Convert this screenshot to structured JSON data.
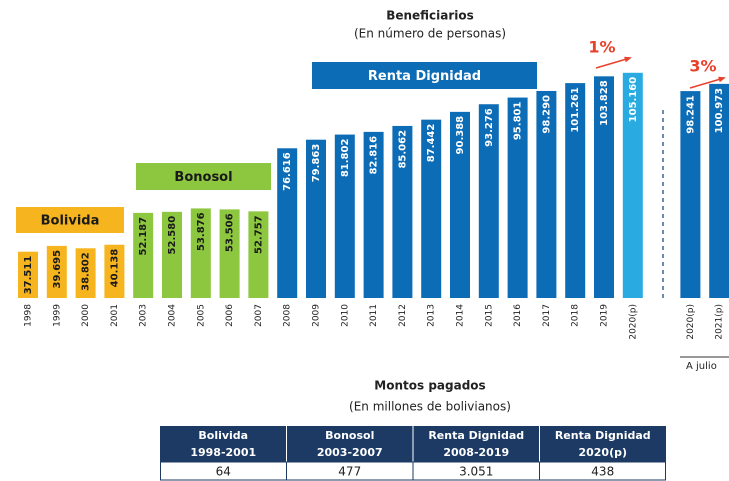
{
  "chart_data": {
    "type": "bar",
    "title": "Beneficiarios",
    "subtitle": "(En número de personas)",
    "categories": [
      "1998",
      "1999",
      "2000",
      "2001",
      "2003",
      "2004",
      "2005",
      "2006",
      "2007",
      "2008",
      "2009",
      "2010",
      "2011",
      "2012",
      "2013",
      "2014",
      "2015",
      "2016",
      "2017",
      "2018",
      "2019",
      "2020(p)",
      null,
      "2020(p)",
      "2021(p)"
    ],
    "values": [
      37511,
      39695,
      38802,
      40138,
      52187,
      52580,
      53876,
      53506,
      52757,
      76616,
      79863,
      81802,
      82816,
      85062,
      87442,
      90388,
      93276,
      95801,
      98290,
      101261,
      103828,
      105160,
      null,
      98241,
      100973
    ],
    "value_labels": [
      "37.511",
      "39.695",
      "38.802",
      "40.138",
      "52.187",
      "52.580",
      "53.876",
      "53.506",
      "52.757",
      "76.616",
      "79.863",
      "81.802",
      "82.816",
      "85.062",
      "87.442",
      "90.388",
      "93.276",
      "95.801",
      "98.290",
      "101.261",
      "103.828",
      "105.160",
      null,
      "98.241",
      "100.973"
    ],
    "colors": [
      "#f6b51e",
      "#f6b51e",
      "#f6b51e",
      "#f6b51e",
      "#8dc63f",
      "#8dc63f",
      "#8dc63f",
      "#8dc63f",
      "#8dc63f",
      "#0d6cb6",
      "#0d6cb6",
      "#0d6cb6",
      "#0d6cb6",
      "#0d6cb6",
      "#0d6cb6",
      "#0d6cb6",
      "#0d6cb6",
      "#0d6cb6",
      "#0d6cb6",
      "#0d6cb6",
      "#0d6cb6",
      "#29abe2",
      null,
      "#0d6cb6",
      "#0d6cb6"
    ],
    "ylim": [
      20000,
      110000
    ],
    "groups": [
      {
        "label": "Bolivida",
        "color": "#f6b51e"
      },
      {
        "label": "Bonosol",
        "color": "#8dc63f"
      },
      {
        "label": "Renta Dignidad",
        "color": "#0d6cb6"
      }
    ],
    "annotations": [
      "1%",
      "3%"
    ],
    "annotation_color": "#e8412c",
    "footnote": "A julio"
  },
  "table": {
    "title": "Montos pagados",
    "subtitle": "(En millones de bolivianos)",
    "header": [
      [
        "Bolivida",
        "1998-2001"
      ],
      [
        "Bonosol",
        "2003-2007"
      ],
      [
        "Renta Dignidad",
        "2008-2019"
      ],
      [
        "Renta Dignidad",
        "2020(p)"
      ]
    ],
    "rows": [
      [
        "64",
        "477",
        "3.051",
        "438"
      ]
    ]
  }
}
